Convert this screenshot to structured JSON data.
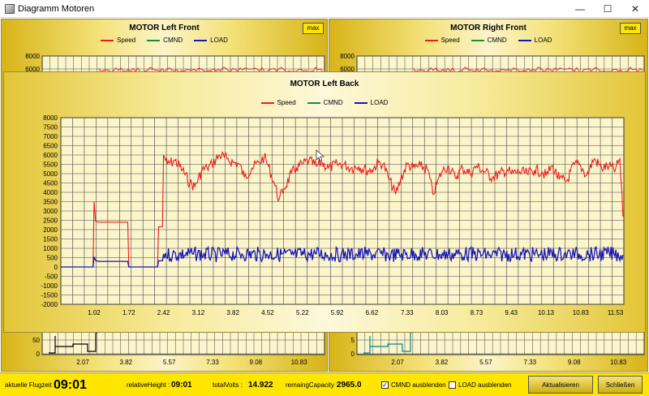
{
  "window": {
    "title": "Diagramm Motoren",
    "minimize_glyph": "—",
    "maximize_glyph": "☐",
    "close_glyph": "✕"
  },
  "legend": {
    "speed": "Speed",
    "cmnd": "CMND",
    "load": "LOAD"
  },
  "colors": {
    "speed": "#ee1c1c",
    "cmnd": "#1e8a3a",
    "load": "#1616b4",
    "cmnd_line": "#00868a"
  },
  "panels": {
    "left_front": {
      "title": "MOTOR Left Front",
      "max_label": "max",
      "y_ticks": [
        "8000",
        "6000"
      ],
      "bottom_y_ticks": [
        "50",
        "0"
      ],
      "x_ticks": [
        "2.07",
        "3.82",
        "5.57",
        "7.33",
        "9.08",
        "10.83"
      ]
    },
    "right_front": {
      "title": "MOTOR Right Front",
      "max_label": "max",
      "y_ticks": [
        "8000",
        "6000"
      ],
      "bottom_y_ticks": [
        "5",
        "0"
      ],
      "x_ticks": [
        "2.07",
        "3.82",
        "5.57",
        "7.33",
        "9.08",
        "10.83"
      ]
    },
    "left_back": {
      "title": "MOTOR Left Back"
    }
  },
  "chart_data": {
    "type": "line",
    "title": "MOTOR Left Back",
    "xlim": [
      0.35,
      11.7
    ],
    "ylim": [
      -2000,
      8000
    ],
    "y_ticks": [
      "8000",
      "7500",
      "7000",
      "6500",
      "6000",
      "5500",
      "5000",
      "4500",
      "4000",
      "3500",
      "3000",
      "2500",
      "2000",
      "1500",
      "1000",
      "500",
      "0",
      "-500",
      "-1000",
      "-1500",
      "-2000"
    ],
    "x_ticks": [
      "1.02",
      "1.72",
      "2.42",
      "3.12",
      "3.82",
      "4.52",
      "5.22",
      "5.92",
      "6.62",
      "7.33",
      "8.03",
      "8.73",
      "9.43",
      "10.13",
      "10.83",
      "11.53"
    ],
    "legend_position": "top-center",
    "grid": true,
    "series": [
      {
        "name": "Speed",
        "x": [
          0.35,
          1.0,
          1.02,
          1.05,
          1.1,
          1.5,
          1.7,
          1.72,
          1.76,
          2.3,
          2.32,
          2.35,
          2.38,
          2.4,
          2.42,
          2.5,
          2.65,
          2.8,
          2.95,
          3.05,
          3.2,
          3.3,
          3.4,
          3.55,
          3.7,
          3.82,
          3.95,
          4.05,
          4.2,
          4.35,
          4.45,
          4.52,
          4.65,
          4.75,
          4.85,
          5.0,
          5.1,
          5.22,
          5.35,
          5.5,
          5.6,
          5.75,
          5.92,
          6.05,
          6.2,
          6.35,
          6.5,
          6.62,
          6.75,
          6.85,
          6.95,
          7.1,
          7.2,
          7.33,
          7.45,
          7.6,
          7.75,
          7.85,
          8.03,
          8.15,
          8.3,
          8.45,
          8.6,
          8.73,
          8.9,
          9.05,
          9.2,
          9.35,
          9.43,
          9.6,
          9.75,
          9.9,
          10.05,
          10.13,
          10.25,
          10.4,
          10.55,
          10.7,
          10.83,
          10.95,
          11.1,
          11.25,
          11.4,
          11.53,
          11.62,
          11.68
        ],
        "y": [
          0,
          0,
          3500,
          2450,
          2400,
          2400,
          2400,
          0,
          0,
          0,
          2150,
          2150,
          2150,
          2150,
          6000,
          5500,
          5700,
          5200,
          4500,
          4300,
          5200,
          5300,
          5500,
          6000,
          5800,
          5600,
          5500,
          4800,
          5300,
          5600,
          5900,
          5500,
          4500,
          3600,
          4200,
          5000,
          5300,
          5500,
          5700,
          5400,
          5600,
          5300,
          5500,
          5500,
          5300,
          5400,
          5200,
          5200,
          5600,
          5500,
          4800,
          3900,
          4700,
          5500,
          5300,
          5400,
          5200,
          3900,
          5100,
          5400,
          4800,
          5300,
          5000,
          5400,
          5100,
          4800,
          5000,
          5200,
          5000,
          5100,
          5000,
          5200,
          5100,
          4900,
          5400,
          4700,
          4600,
          5500,
          5400,
          4900,
          5800,
          5300,
          5400,
          5200,
          5800,
          2700
        ]
      },
      {
        "name": "CMND",
        "x": [],
        "y": []
      },
      {
        "name": "LOAD",
        "x": [
          0.35,
          1.0,
          1.02,
          1.05,
          1.1,
          1.7,
          1.72,
          2.3,
          2.32,
          2.4,
          2.42,
          2.6,
          3.0,
          3.5,
          4.0,
          4.5,
          5.0,
          5.5,
          6.0,
          6.5,
          7.0,
          7.5,
          8.0,
          8.5,
          9.0,
          9.5,
          10.0,
          10.5,
          11.0,
          11.5,
          11.68
        ],
        "y": [
          0,
          0,
          550,
          350,
          300,
          300,
          0,
          0,
          330,
          330,
          700,
          650,
          700,
          650,
          700,
          680,
          650,
          700,
          660,
          690,
          640,
          700,
          660,
          700,
          650,
          690,
          670,
          700,
          680,
          700,
          650
        ]
      }
    ]
  },
  "status": {
    "flight_time_label": "aktuelle Flugzeit :",
    "flight_time_value": "09:01",
    "rel_height_label": "relativeHeight :",
    "rel_height_value": "09:01",
    "total_volts_label": "totalVolts :",
    "total_volts_value": "14.922",
    "capacity_label": "remaingCapacity :",
    "capacity_value": "2965.0",
    "cmnd_hide_label": "CMND ausblenden",
    "cmnd_hide_checked": "✓",
    "load_hide_label": "LOAD ausblenden",
    "refresh_label": "Aktualisieren",
    "close_label": "Schließen"
  }
}
